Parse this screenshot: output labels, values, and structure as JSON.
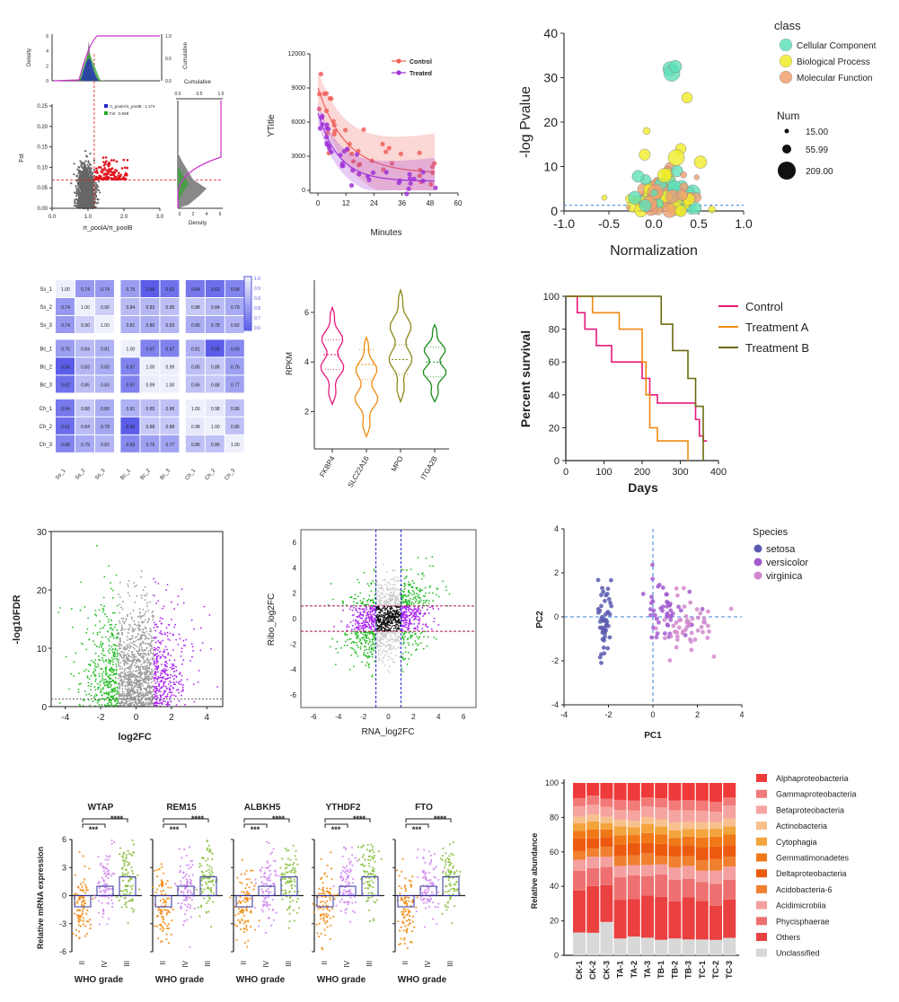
{
  "chart_data": [
    {
      "id": "fst_scatter",
      "type": "scatter",
      "xlabel": "π_poolA/π_poolB",
      "ylabel": "Fst",
      "xticks": [
        "0.0",
        "1.0",
        "2.0",
        "3.0"
      ],
      "yticks": [
        "0.00",
        "0.05",
        "0.10",
        "0.15",
        "0.20",
        "0.25"
      ],
      "legend": [
        "π_poolA/π_poolB : 1.174",
        "Fst : 0.069"
      ],
      "top_hist_ylabel": "Density",
      "top_hist_yticks": [
        "0",
        "2",
        "4",
        "6"
      ],
      "top_cum_ylabel": "Cumulative",
      "top_cum_yticks": [
        "0.0",
        "0.5",
        "1.0"
      ],
      "right_hist_xlabel": "Density",
      "right_hist_xticks": [
        "0",
        "2",
        "4",
        "6"
      ],
      "right_cum_xlabel": "Cumulative",
      "right_cum_xticks": [
        "0.0",
        "0.5",
        "1.0"
      ],
      "thresholds": {
        "x": 1.174,
        "y": 0.069
      },
      "colors": {
        "grey": "#666666",
        "red": "#e0141e",
        "blue": "#2222cc",
        "green": "#22aa22",
        "magenta": "#cc33cc"
      }
    },
    {
      "id": "decay_curve",
      "type": "scatter",
      "ylabel": "YTitle",
      "xlabel": "Minutes",
      "xticks": [
        "0",
        "12",
        "24",
        "36",
        "48",
        "60"
      ],
      "yticks": [
        "0",
        "3000",
        "6000",
        "9000",
        "12000"
      ],
      "series": [
        {
          "name": "Control",
          "color": "#f0605a"
        },
        {
          "name": "Treated",
          "color": "#a032d8"
        }
      ]
    },
    {
      "id": "bubble",
      "type": "scatter",
      "xlabel": "Normalization",
      "ylabel": "-log Pvalue",
      "xticks": [
        "-1.0",
        "-0.5",
        "0.0",
        "0.5",
        "1.0"
      ],
      "yticks": [
        "0",
        "10",
        "20",
        "30",
        "40"
      ],
      "legend_title": "class",
      "classes": [
        {
          "name": "Cellular Component",
          "color": "#5fe0b8"
        },
        {
          "name": "Biological Process",
          "color": "#f0ec28"
        },
        {
          "name": "Molecular Function",
          "color": "#f0a070"
        }
      ],
      "size_title": "Num",
      "sizes": [
        "15.00",
        "55.99",
        "209.00"
      ]
    },
    {
      "id": "corr_heatmap",
      "type": "heatmap",
      "labels": [
        "Ss_1",
        "Ss_2",
        "Ss_3",
        "Bc_1",
        "Bc_2",
        "Bc_3",
        "Ch_1",
        "Ch_2",
        "Ch_3"
      ],
      "values": [
        [
          "1.00",
          "0.74",
          "0.74",
          "0.75",
          "0.56",
          "0.62",
          "0.64",
          "0.61",
          "0.68"
        ],
        [
          "0.74",
          "1.00",
          "0.90",
          "0.84",
          "0.83",
          "0.85",
          "0.88",
          "0.84",
          "0.79"
        ],
        [
          "0.74",
          "0.90",
          "1.00",
          "0.81",
          "0.80",
          "0.83",
          "0.80",
          "0.78",
          "0.82"
        ],
        [
          "0.75",
          "0.84",
          "0.81",
          "1.00",
          "0.67",
          "0.67",
          "0.81",
          "0.56",
          "0.69"
        ],
        [
          "0.56",
          "0.83",
          "0.80",
          "0.67",
          "1.00",
          "0.99",
          "0.85",
          "0.88",
          "0.76"
        ],
        [
          "0.62",
          "0.85",
          "0.83",
          "0.67",
          "0.99",
          "1.00",
          "0.86",
          "0.88",
          "0.77"
        ],
        [
          "0.64",
          "0.88",
          "0.80",
          "0.81",
          "0.85",
          "0.86",
          "1.00",
          "0.98",
          "0.86"
        ],
        [
          "0.61",
          "0.84",
          "0.78",
          "0.56",
          "0.88",
          "0.88",
          "0.98",
          "1.00",
          "0.86"
        ],
        [
          "0.68",
          "0.79",
          "0.82",
          "0.69",
          "0.76",
          "0.77",
          "0.86",
          "0.86",
          "1.00"
        ]
      ],
      "colorbar_ticks": [
        "1.0",
        "0.9",
        "0.9",
        "0.8",
        "0.7",
        "0.6"
      ]
    },
    {
      "id": "violin",
      "type": "violin",
      "ylabel": "RPKM",
      "yticks": [
        "2",
        "4",
        "6"
      ],
      "categories": [
        "FKBP4",
        "SLC22A16",
        "MPO",
        "ITGA2B"
      ],
      "colors": [
        "#e8187a",
        "#f08a10",
        "#8a8a18",
        "#1a8a1a"
      ],
      "ranges": [
        [
          2.3,
          6.2
        ],
        [
          1.0,
          5.0
        ],
        [
          2.4,
          6.9
        ],
        [
          2.4,
          5.5
        ]
      ],
      "medians": [
        4.3,
        3.9,
        4.1,
        4.0
      ]
    },
    {
      "id": "survival",
      "type": "line",
      "xlabel": "Days",
      "ylabel": "Percent survival",
      "xticks": [
        "0",
        "100",
        "200",
        "300",
        "400"
      ],
      "yticks": [
        "0",
        "20",
        "40",
        "60",
        "80",
        "100"
      ],
      "series": [
        {
          "name": "Control",
          "color": "#e8187a",
          "x": [
            0,
            30,
            30,
            50,
            50,
            80,
            80,
            120,
            120,
            200,
            200,
            220,
            220,
            240,
            240,
            340,
            340,
            350,
            350,
            360,
            360,
            370
          ],
          "y": [
            100,
            100,
            90,
            90,
            80,
            80,
            70,
            70,
            60,
            60,
            50,
            50,
            40,
            40,
            35,
            35,
            25,
            25,
            15,
            15,
            12,
            12
          ]
        },
        {
          "name": "Treatment A",
          "color": "#f08a10",
          "x": [
            0,
            70,
            70,
            140,
            140,
            200,
            200,
            210,
            210,
            220,
            220,
            240,
            240,
            320,
            320
          ],
          "y": [
            100,
            100,
            90,
            90,
            80,
            80,
            60,
            60,
            40,
            40,
            20,
            20,
            12,
            12,
            0
          ]
        },
        {
          "name": "Treatment B",
          "color": "#6b6b10",
          "x": [
            0,
            250,
            250,
            280,
            280,
            320,
            320,
            340,
            340,
            360,
            360
          ],
          "y": [
            100,
            100,
            83,
            83,
            67,
            67,
            50,
            50,
            33,
            33,
            0
          ]
        }
      ]
    },
    {
      "id": "volcano",
      "type": "scatter",
      "xlabel": "log2FC",
      "ylabel": "-log10FDR",
      "xticks": [
        "-4",
        "-2",
        "0",
        "2",
        "4"
      ],
      "yticks": [
        "0",
        "10",
        "20",
        "30"
      ],
      "colors": {
        "down": "#22bb22",
        "ns": "#999999",
        "up": "#aa22ee"
      }
    },
    {
      "id": "ribo_rna",
      "type": "scatter",
      "xlabel": "RNA_log2FC",
      "ylabel": "Ribo_log2FC",
      "xticks": [
        "-6",
        "-4",
        "-2",
        "0",
        "2",
        "4",
        "6"
      ],
      "yticks": [
        "-6",
        "-4",
        "-2",
        "0",
        "2",
        "4",
        "6"
      ],
      "colors": {
        "green": "#22bb22",
        "purple": "#aa22ee",
        "black": "#111111",
        "grey": "#cccccc"
      }
    },
    {
      "id": "pca",
      "type": "scatter",
      "xlabel": "PC1",
      "ylabel": "PC2",
      "xticks": [
        "-4",
        "-2",
        "0",
        "2",
        "4"
      ],
      "yticks": [
        "-4",
        "-2",
        "0",
        "2",
        "4"
      ],
      "legend_title": "Species",
      "series": [
        {
          "name": "setosa",
          "color": "#5a5ab0"
        },
        {
          "name": "versicolor",
          "color": "#a25cd0"
        },
        {
          "name": "virginica",
          "color": "#d088cc"
        }
      ]
    },
    {
      "id": "mrna",
      "type": "bar",
      "ylabel": "Relative mRNA expression",
      "xlabel": "WHO grade",
      "panels": [
        "WTAP",
        "REM15",
        "ALBKH5",
        "YTHDF2",
        "FTO"
      ],
      "categories": [
        "II",
        "IV",
        "III"
      ],
      "yticks": [
        "-6",
        "-3",
        "0",
        "3",
        "6"
      ],
      "sig_short": "***",
      "sig_long": "****",
      "means": [
        -1.2,
        1.0,
        2.0
      ],
      "colors": [
        "#f08a10",
        "#d088ee",
        "#88c040"
      ]
    },
    {
      "id": "abundance",
      "type": "bar",
      "ylabel": "Relative abundance",
      "yticks": [
        "0",
        "20",
        "40",
        "60",
        "80",
        "100"
      ],
      "categories": [
        "CK-1",
        "CK-2",
        "CK-3",
        "TA-1",
        "TA-2",
        "TA-3",
        "TB-1",
        "TB-2",
        "TB-3",
        "TC-1",
        "TC-2",
        "TC-3"
      ],
      "legend": [
        {
          "name": "Alphaproteobacteria",
          "color": "#ee3a3a"
        },
        {
          "name": "Gammaproteobacteria",
          "color": "#f27a78"
        },
        {
          "name": "Betaproteobacteria",
          "color": "#f6a4a0"
        },
        {
          "name": "Actinobacteria",
          "color": "#f8c08c"
        },
        {
          "name": "Cytophagia",
          "color": "#f4a43c"
        },
        {
          "name": "Gemmatimonadetes",
          "color": "#f07818"
        },
        {
          "name": "Deltaproteobacteria",
          "color": "#ec5a10"
        },
        {
          "name": "Acidobacteria-6",
          "color": "#f08030"
        },
        {
          "name": "Acidimicrobiia",
          "color": "#f4a0a0"
        },
        {
          "name": "Phycisphaerae",
          "color": "#ee7070"
        },
        {
          "name": "Others",
          "color": "#ea4040"
        },
        {
          "name": "Unclassified",
          "color": "#d8d8d8"
        }
      ],
      "unclassified": [
        13,
        13,
        19,
        10,
        11,
        10,
        9,
        10,
        9,
        9,
        9,
        10
      ],
      "others": [
        24,
        27,
        21,
        23,
        22,
        24,
        25,
        22,
        24,
        22,
        20,
        22
      ]
    }
  ]
}
